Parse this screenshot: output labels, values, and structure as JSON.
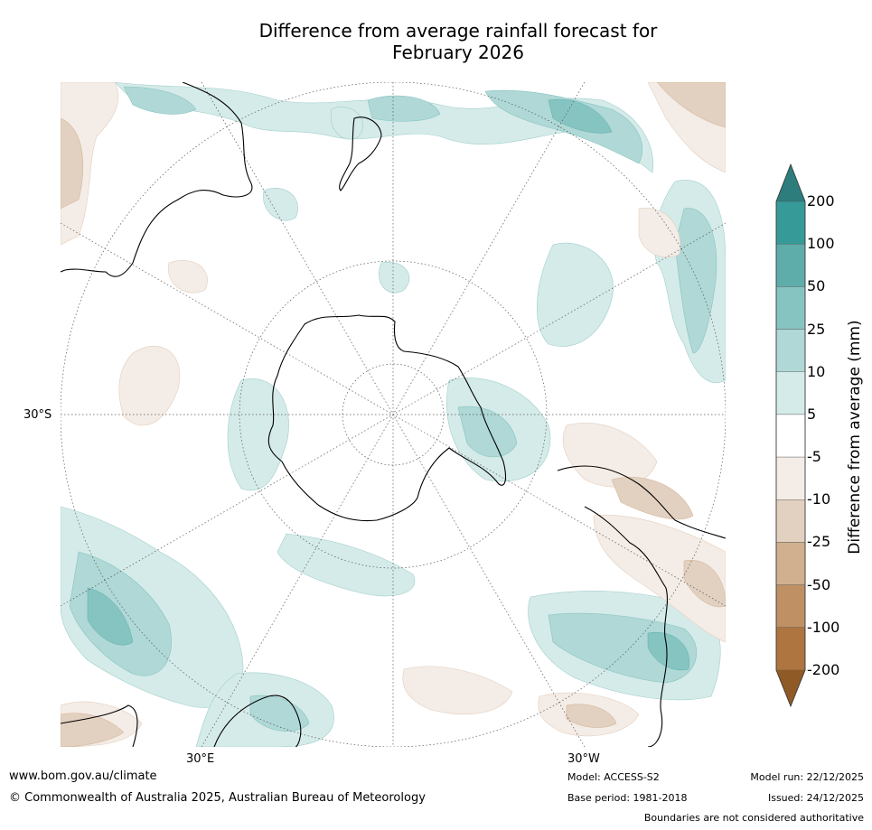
{
  "title": {
    "line1": "Difference from average rainfall forecast for",
    "line2": "February 2026"
  },
  "map": {
    "lat_label": "30°S",
    "lon_label_left": "30°E",
    "lon_label_right": "30°W",
    "colors": {
      "ocean": "#ffffff",
      "wet_light": "#d5ebe9",
      "wet_mid": "#afd8d6",
      "wet_strong": "#86c4c2",
      "dry_light": "#f4ece6",
      "dry_mid": "#e2d0c0"
    }
  },
  "colorbar": {
    "title": "Difference from average (mm)",
    "ticks": [
      "200",
      "100",
      "50",
      "25",
      "10",
      "5",
      "-5",
      "-10",
      "-25",
      "-50",
      "-100",
      "-200"
    ],
    "colors": [
      "#2c7d7c",
      "#369b98",
      "#5fadab",
      "#86c4c2",
      "#afd8d6",
      "#d5ebe9",
      "#ffffff",
      "#f4ece6",
      "#e2d0c0",
      "#d0b08f",
      "#bf9064",
      "#ae7540",
      "#8f5a25"
    ]
  },
  "footer": {
    "website": "www.bom.gov.au/climate",
    "copyright": "© Commonwealth of Australia 2025, Australian Bureau of Meteorology",
    "model": "Model: ACCESS-S2",
    "base_period": "Base period: 1981-2018",
    "model_run": "Model run: 22/12/2025",
    "issued": "Issued: 24/12/2025",
    "disclaimer": "Boundaries are not considered authoritative"
  }
}
